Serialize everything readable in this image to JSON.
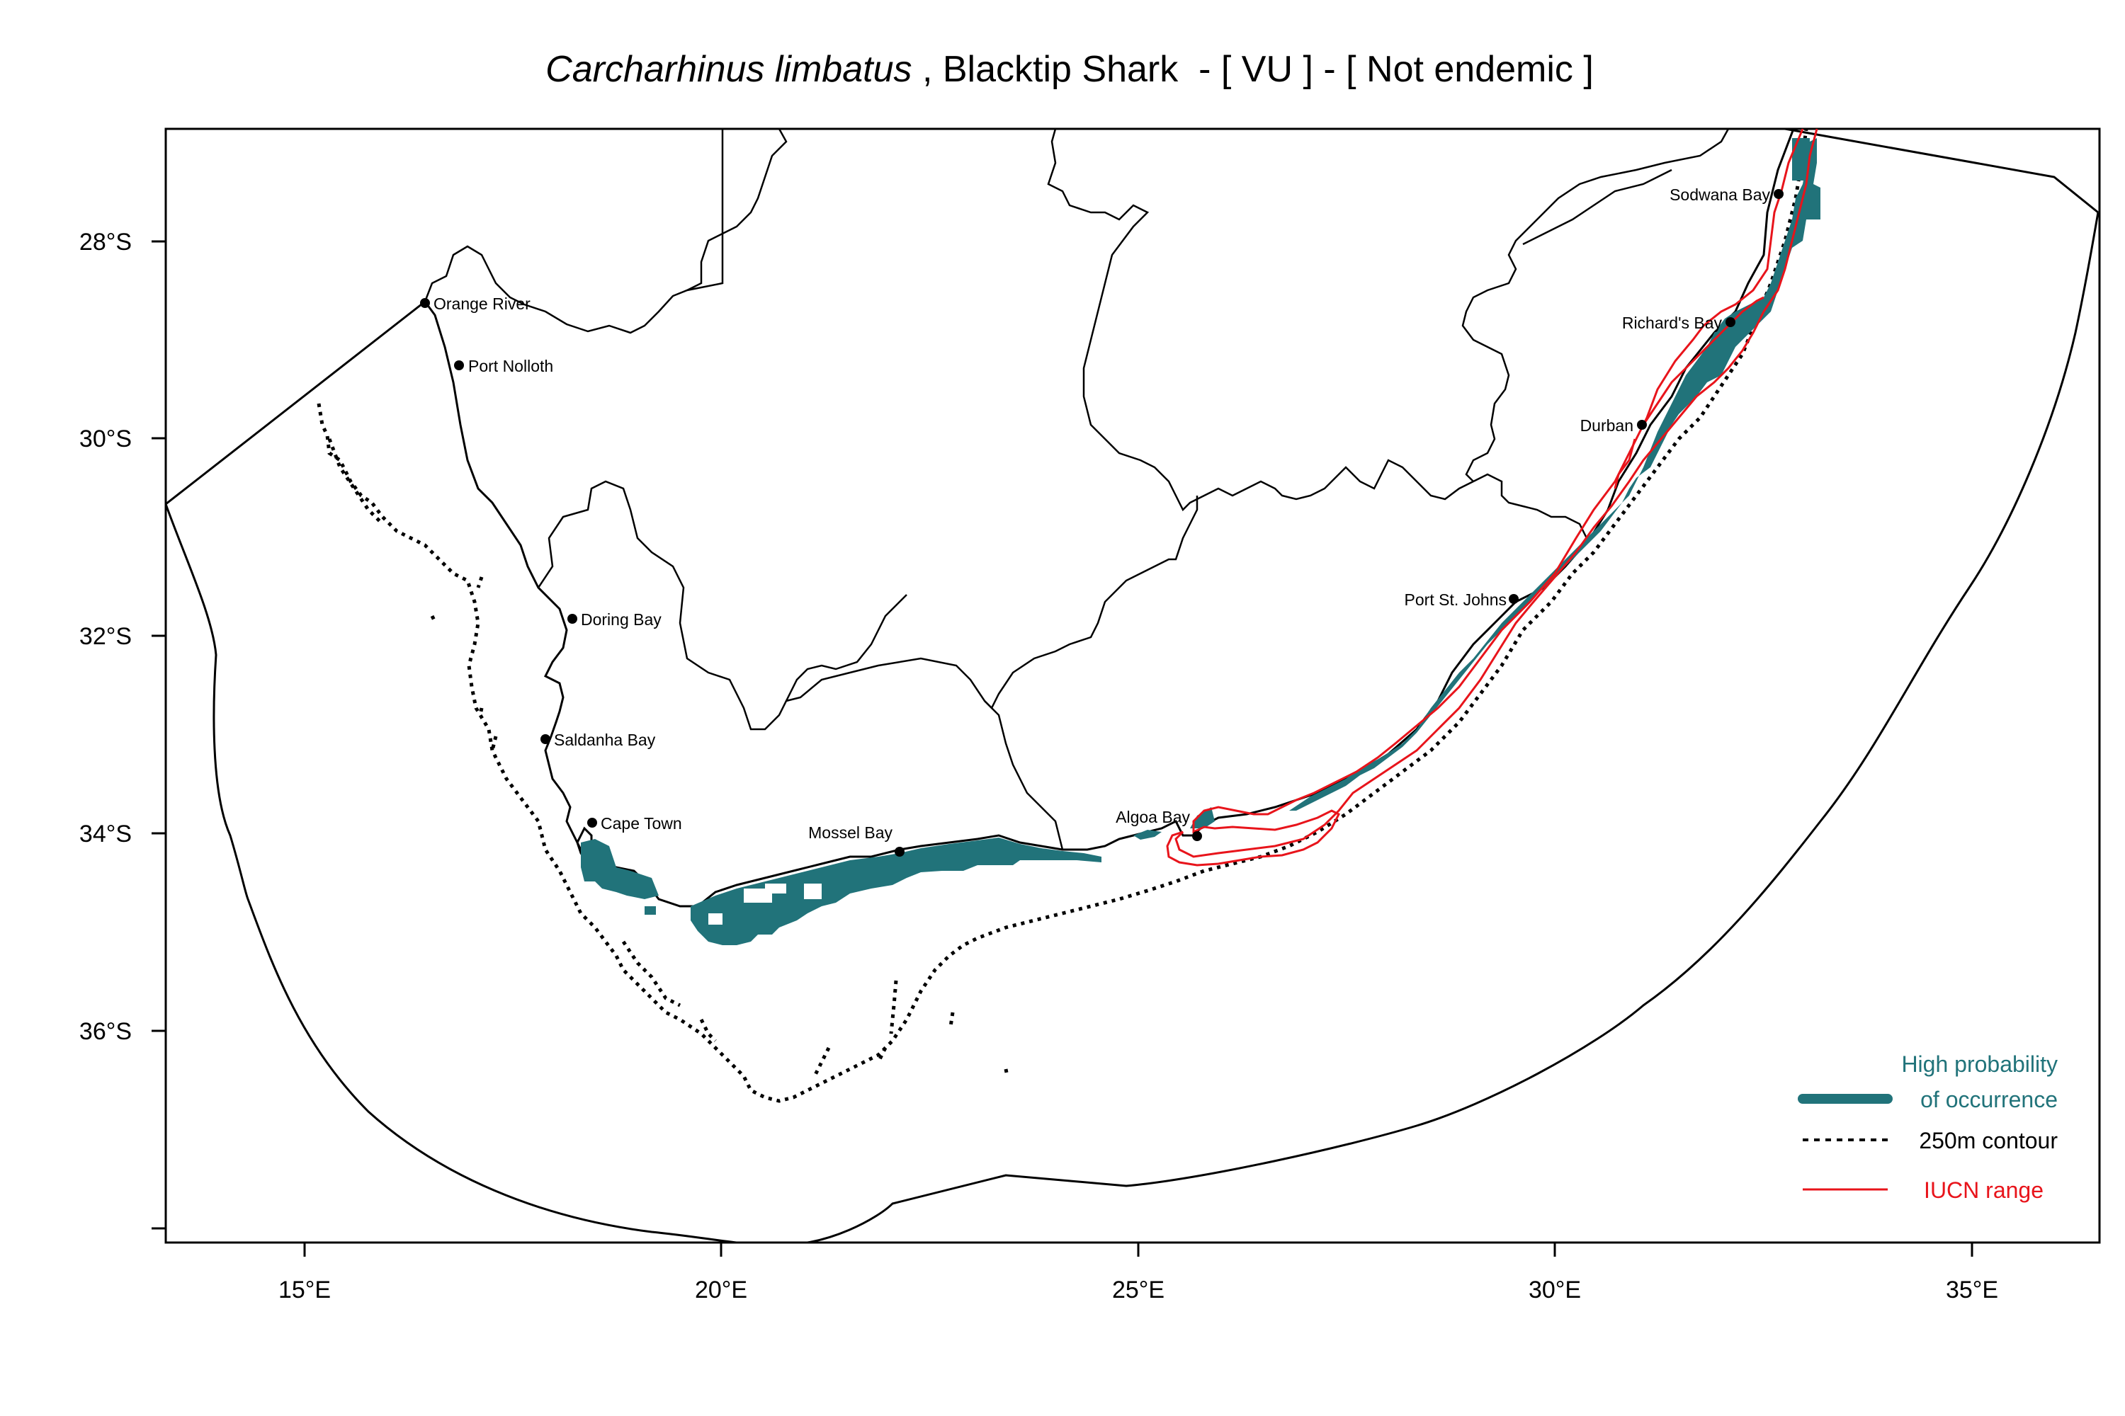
{
  "title": {
    "species": "Carcharhinus limbatus",
    "rest": " , Blacktip Shark  - [ VU ] - [ Not endemic ]"
  },
  "axes": {
    "x_ticks": [
      "15°E",
      "20°E",
      "25°E",
      "30°E",
      "35°E"
    ],
    "y_ticks": [
      "28°S",
      "30°S",
      "32°S",
      "34°S",
      "36°S"
    ]
  },
  "places": [
    {
      "name": "Orange River"
    },
    {
      "name": "Port Nolloth"
    },
    {
      "name": "Doring Bay"
    },
    {
      "name": "Saldanha Bay"
    },
    {
      "name": "Cape Town"
    },
    {
      "name": "Mossel Bay"
    },
    {
      "name": "Algoa Bay"
    },
    {
      "name": "Port St. Johns"
    },
    {
      "name": "Durban"
    },
    {
      "name": "Richard's Bay"
    },
    {
      "name": "Sodwana Bay"
    }
  ],
  "legend": {
    "occurrence_line1": "High probability",
    "occurrence_line2": "of occurrence",
    "contour": "250m contour",
    "iucn": "IUCN range"
  },
  "colors": {
    "occurrence": "#21737a",
    "iucn": "#e8141b",
    "lines": "#000000"
  }
}
